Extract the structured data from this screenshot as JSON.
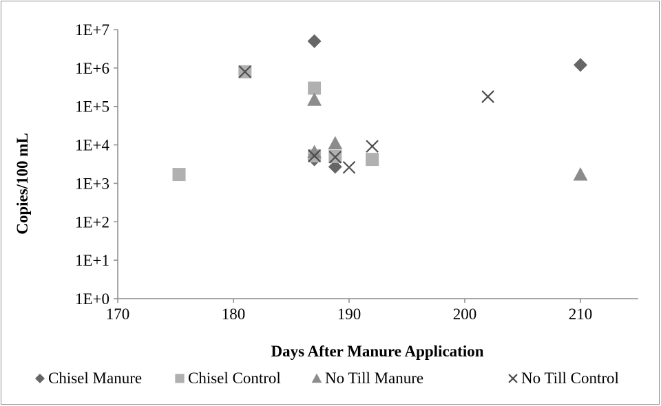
{
  "chart_data": {
    "type": "scatter",
    "xlabel": "Days After Manure Application",
    "ylabel": "Copies/100 mL",
    "xlim": [
      170,
      215
    ],
    "ylim": [
      1,
      10000000
    ],
    "yscale": "log",
    "x_ticks": [
      "170",
      "180",
      "190",
      "200",
      "210"
    ],
    "x_tick_values": [
      170,
      180,
      190,
      200,
      210
    ],
    "y_ticks": [
      "1E+0",
      "1E+1",
      "1E+2",
      "1E+3",
      "1E+4",
      "1E+5",
      "1E+6",
      "1E+7"
    ],
    "y_tick_values": [
      1,
      10,
      100,
      1000,
      10000,
      100000,
      1000000,
      10000000
    ],
    "grid": false,
    "legend_position": "bottom",
    "series": [
      {
        "name": "Chisel Manure",
        "marker": "diamond",
        "color": "#666666",
        "points": [
          {
            "x": 187,
            "y": 5000000
          },
          {
            "x": 187,
            "y": 4200
          },
          {
            "x": 188.8,
            "y": 2700
          },
          {
            "x": 210,
            "y": 1200000
          }
        ]
      },
      {
        "name": "Chisel Control",
        "marker": "square",
        "color": "#b0b0b0",
        "points": [
          {
            "x": 175.3,
            "y": 1700
          },
          {
            "x": 181,
            "y": 800000
          },
          {
            "x": 187,
            "y": 300000
          },
          {
            "x": 187,
            "y": 5200
          },
          {
            "x": 188.8,
            "y": 5000
          },
          {
            "x": 192,
            "y": 4200
          }
        ]
      },
      {
        "name": "No Till Manure",
        "marker": "triangle",
        "color": "#8c8c8c",
        "points": [
          {
            "x": 187,
            "y": 150000
          },
          {
            "x": 187,
            "y": 6500
          },
          {
            "x": 188.8,
            "y": 11000
          },
          {
            "x": 210,
            "y": 1700
          }
        ]
      },
      {
        "name": "No Till Control",
        "marker": "x",
        "color": "#4d4d4d",
        "points": [
          {
            "x": 181,
            "y": 800000
          },
          {
            "x": 187,
            "y": 5200
          },
          {
            "x": 188.8,
            "y": 4800
          },
          {
            "x": 190,
            "y": 2600
          },
          {
            "x": 192,
            "y": 9200
          },
          {
            "x": 202,
            "y": 180000
          }
        ]
      }
    ]
  }
}
